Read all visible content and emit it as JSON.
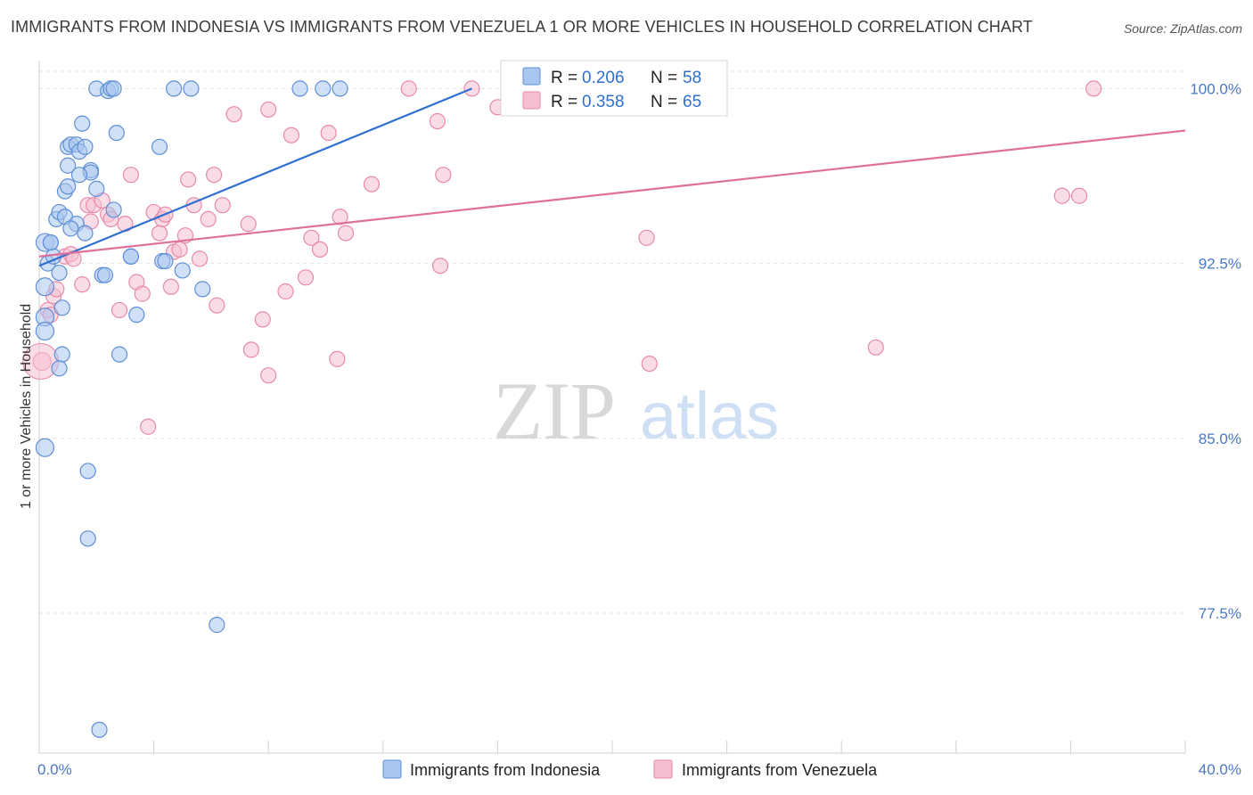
{
  "header": {
    "title": "IMMIGRANTS FROM INDONESIA VS IMMIGRANTS FROM VENEZUELA 1 OR MORE VEHICLES IN HOUSEHOLD CORRELATION CHART",
    "source": "Source: ZipAtlas.com"
  },
  "watermark": "ZIPatlas",
  "colors": {
    "indonesia_fill": "#a9c6ee",
    "indonesia_stroke": "#5f8fd6",
    "indonesia_line": "#2f6fcf",
    "venezuela_fill": "#f6bfd1",
    "venezuela_stroke": "#e88aaa",
    "venezuela_line": "#e0709a",
    "tick_label": "#4a78c4",
    "grid": "#e3e3e3"
  },
  "legend": {
    "r_label": "R =",
    "n_label": "N =",
    "rows": [
      {
        "r": "0.206",
        "n": "58"
      },
      {
        "r": "0.358",
        "n": "65"
      }
    ]
  },
  "chart_data": {
    "type": "scatter",
    "title": "IMMIGRANTS FROM INDONESIA VS IMMIGRANTS FROM VENEZUELA 1 OR MORE VEHICLES IN HOUSEHOLD CORRELATION CHART",
    "xlabel": "",
    "ylabel": "1 or more Vehicles in Household",
    "xlim": [
      0,
      40
    ],
    "ylim": [
      71.5,
      101.2
    ],
    "x_tick_labels": [
      "0.0%",
      "40.0%"
    ],
    "y_ticks": [
      77.5,
      85.0,
      92.5,
      100.0
    ],
    "y_tick_labels": [
      "77.5%",
      "85.0%",
      "92.5%",
      "100.0%"
    ],
    "legend_position": "top-center",
    "series": [
      {
        "name": "Immigrants from Indonesia",
        "r": 0.206,
        "n": 58,
        "trend": {
          "x": [
            0.0,
            15.1
          ],
          "y": [
            92.4,
            100.0
          ]
        },
        "points": [
          [
            0.2,
            93.4
          ],
          [
            0.3,
            92.5
          ],
          [
            0.2,
            91.5
          ],
          [
            0.2,
            90.2
          ],
          [
            0.2,
            89.6
          ],
          [
            0.2,
            84.6
          ],
          [
            0.4,
            93.4
          ],
          [
            0.5,
            92.8
          ],
          [
            0.6,
            94.4
          ],
          [
            0.7,
            94.7
          ],
          [
            0.7,
            92.1
          ],
          [
            0.8,
            90.6
          ],
          [
            0.8,
            88.6
          ],
          [
            0.7,
            88.0
          ],
          [
            0.9,
            94.5
          ],
          [
            0.9,
            95.6
          ],
          [
            1.0,
            95.8
          ],
          [
            1.0,
            96.7
          ],
          [
            1.0,
            97.5
          ],
          [
            1.1,
            97.6
          ],
          [
            1.3,
            97.6
          ],
          [
            1.4,
            97.3
          ],
          [
            1.5,
            98.5
          ],
          [
            1.6,
            97.5
          ],
          [
            1.3,
            94.2
          ],
          [
            1.6,
            93.8
          ],
          [
            1.8,
            96.5
          ],
          [
            1.8,
            96.4
          ],
          [
            2.0,
            95.7
          ],
          [
            2.0,
            100.0
          ],
          [
            2.2,
            92.0
          ],
          [
            2.3,
            92.0
          ],
          [
            2.4,
            99.9
          ],
          [
            2.5,
            100.0
          ],
          [
            2.6,
            100.0
          ],
          [
            2.6,
            94.8
          ],
          [
            2.7,
            98.1
          ],
          [
            2.8,
            88.6
          ],
          [
            3.2,
            92.8
          ],
          [
            3.4,
            90.3
          ],
          [
            4.2,
            97.5
          ],
          [
            4.3,
            92.6
          ],
          [
            4.4,
            92.6
          ],
          [
            4.7,
            100.0
          ],
          [
            5.0,
            92.2
          ],
          [
            5.3,
            100.0
          ],
          [
            5.7,
            91.4
          ],
          [
            1.7,
            83.6
          ],
          [
            1.7,
            80.7
          ],
          [
            6.2,
            77.0
          ],
          [
            2.1,
            72.5
          ],
          [
            9.1,
            100.0
          ],
          [
            9.9,
            100.0
          ],
          [
            10.5,
            100.0
          ],
          [
            1.4,
            96.3
          ],
          [
            0.4,
            93.4
          ],
          [
            1.1,
            94.0
          ],
          [
            3.2,
            92.8
          ]
        ]
      },
      {
        "name": "Immigrants from Venezuela",
        "r": 0.358,
        "n": 65,
        "trend": {
          "x": [
            0.0,
            40.0
          ],
          "y": [
            92.8,
            98.2
          ]
        },
        "points": [
          [
            0.1,
            88.3
          ],
          [
            0.3,
            90.5
          ],
          [
            0.4,
            90.3
          ],
          [
            0.5,
            91.1
          ],
          [
            0.6,
            91.4
          ],
          [
            0.9,
            92.8
          ],
          [
            1.1,
            92.9
          ],
          [
            1.2,
            92.7
          ],
          [
            1.5,
            91.6
          ],
          [
            1.7,
            95.0
          ],
          [
            1.8,
            94.3
          ],
          [
            1.9,
            95.0
          ],
          [
            2.2,
            95.2
          ],
          [
            2.4,
            94.6
          ],
          [
            2.5,
            94.4
          ],
          [
            2.8,
            90.5
          ],
          [
            3.0,
            94.2
          ],
          [
            3.2,
            96.3
          ],
          [
            3.4,
            91.7
          ],
          [
            3.6,
            91.2
          ],
          [
            3.8,
            85.5
          ],
          [
            4.0,
            94.7
          ],
          [
            4.2,
            93.8
          ],
          [
            4.3,
            94.4
          ],
          [
            4.4,
            94.6
          ],
          [
            4.6,
            91.5
          ],
          [
            4.7,
            93.0
          ],
          [
            4.9,
            93.1
          ],
          [
            5.1,
            93.7
          ],
          [
            5.2,
            96.1
          ],
          [
            5.4,
            95.0
          ],
          [
            5.6,
            92.7
          ],
          [
            5.9,
            94.4
          ],
          [
            6.1,
            96.3
          ],
          [
            6.2,
            90.7
          ],
          [
            6.4,
            95.0
          ],
          [
            6.8,
            98.9
          ],
          [
            7.3,
            94.2
          ],
          [
            7.4,
            88.8
          ],
          [
            7.8,
            90.1
          ],
          [
            8.0,
            87.7
          ],
          [
            8.0,
            99.1
          ],
          [
            8.6,
            91.3
          ],
          [
            8.8,
            98.0
          ],
          [
            9.3,
            91.9
          ],
          [
            9.5,
            93.6
          ],
          [
            9.8,
            93.1
          ],
          [
            10.1,
            98.1
          ],
          [
            10.4,
            88.4
          ],
          [
            10.5,
            94.5
          ],
          [
            10.7,
            93.8
          ],
          [
            11.6,
            95.9
          ],
          [
            12.9,
            100.0
          ],
          [
            13.9,
            98.6
          ],
          [
            14.0,
            92.4
          ],
          [
            14.1,
            96.3
          ],
          [
            15.1,
            100.0
          ],
          [
            16.0,
            99.2
          ],
          [
            19.8,
            100.0
          ],
          [
            21.2,
            93.6
          ],
          [
            21.3,
            88.2
          ],
          [
            29.2,
            88.9
          ],
          [
            35.7,
            95.4
          ],
          [
            36.3,
            95.4
          ],
          [
            36.8,
            100.0
          ]
        ]
      }
    ]
  },
  "bottom_legend": {
    "items": [
      {
        "label": "Immigrants from Indonesia"
      },
      {
        "label": "Immigrants from Venezuela"
      }
    ]
  }
}
